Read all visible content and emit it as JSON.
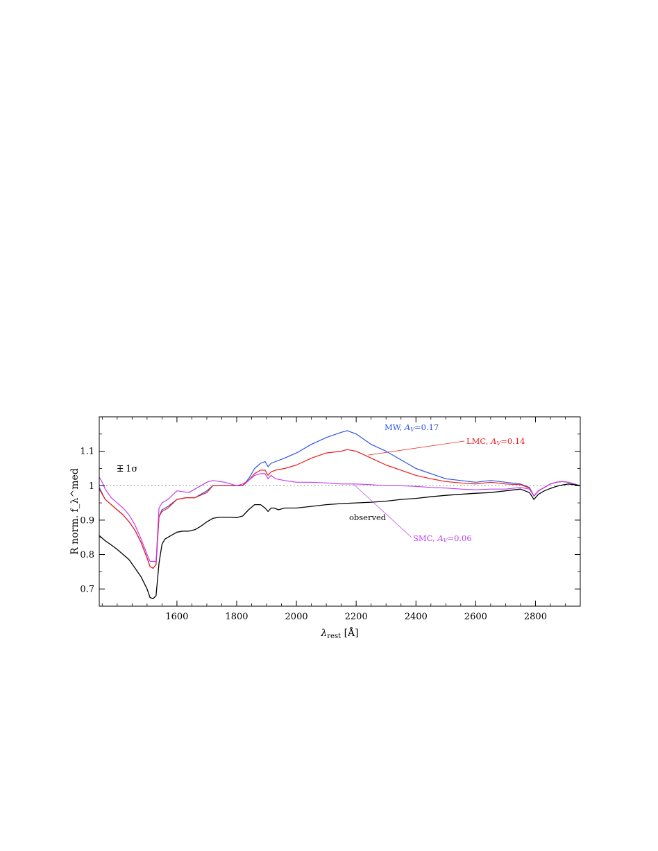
{
  "chart_data": {
    "type": "line",
    "xlabel": "λ_rest [Å]",
    "ylabel": "R norm. f_λ^med",
    "xlim": [
      1340,
      2950
    ],
    "ylim": [
      0.65,
      1.2
    ],
    "x_ticks": [
      1600,
      1800,
      2000,
      2200,
      2400,
      2600,
      2800
    ],
    "y_ticks": [
      0.7,
      0.8,
      0.9,
      1.0,
      1.1
    ],
    "x_tick_labels": [
      "1600",
      "1800",
      "2000",
      "2200",
      "2400",
      "2600",
      "2800"
    ],
    "y_tick_labels": [
      "0.7",
      "0.8",
      "0.9",
      "1",
      "1.1"
    ],
    "reference_line": 1.0,
    "grid": false,
    "error_bar": {
      "label": "1σ",
      "x": 1410,
      "y": 1.05,
      "half_height": 0.008
    },
    "series": [
      {
        "name": "observed",
        "label": "observed",
        "color": "#000000",
        "x": [
          1340,
          1360,
          1380,
          1400,
          1420,
          1440,
          1460,
          1480,
          1500,
          1510,
          1520,
          1530,
          1540,
          1550,
          1560,
          1580,
          1600,
          1620,
          1640,
          1660,
          1680,
          1700,
          1720,
          1740,
          1760,
          1780,
          1800,
          1820,
          1840,
          1860,
          1880,
          1895,
          1905,
          1915,
          1925,
          1940,
          1960,
          1980,
          2000,
          2050,
          2100,
          2150,
          2200,
          2250,
          2300,
          2350,
          2400,
          2450,
          2500,
          2550,
          2600,
          2650,
          2700,
          2750,
          2780,
          2795,
          2810,
          2830,
          2850,
          2870,
          2890,
          2910,
          2930,
          2950
        ],
        "y": [
          0.855,
          0.84,
          0.828,
          0.815,
          0.8,
          0.785,
          0.76,
          0.735,
          0.7,
          0.675,
          0.672,
          0.68,
          0.775,
          0.83,
          0.845,
          0.855,
          0.865,
          0.868,
          0.868,
          0.872,
          0.882,
          0.895,
          0.905,
          0.908,
          0.908,
          0.908,
          0.907,
          0.912,
          0.93,
          0.945,
          0.945,
          0.935,
          0.925,
          0.935,
          0.935,
          0.93,
          0.935,
          0.935,
          0.935,
          0.94,
          0.945,
          0.948,
          0.95,
          0.952,
          0.955,
          0.96,
          0.963,
          0.968,
          0.972,
          0.975,
          0.978,
          0.98,
          0.985,
          0.99,
          0.98,
          0.96,
          0.975,
          0.985,
          0.992,
          0.998,
          1.002,
          1.005,
          1.003,
          1.0
        ]
      },
      {
        "name": "MW",
        "label": "MW, A_V=0.17",
        "color": "#2a52e8",
        "x": [
          1340,
          1360,
          1380,
          1400,
          1420,
          1440,
          1460,
          1480,
          1500,
          1510,
          1520,
          1530,
          1540,
          1550,
          1570,
          1600,
          1630,
          1660,
          1700,
          1720,
          1760,
          1800,
          1820,
          1840,
          1860,
          1880,
          1895,
          1905,
          1915,
          1930,
          1960,
          2000,
          2050,
          2100,
          2150,
          2170,
          2200,
          2250,
          2300,
          2350,
          2400,
          2450,
          2500,
          2550,
          2600,
          2650,
          2700,
          2750,
          2780,
          2795,
          2810,
          2830,
          2850,
          2870,
          2890,
          2910,
          2930,
          2950
        ],
        "y": [
          0.995,
          0.96,
          0.945,
          0.93,
          0.915,
          0.895,
          0.87,
          0.835,
          0.79,
          0.765,
          0.76,
          0.77,
          0.91,
          0.93,
          0.94,
          0.96,
          0.965,
          0.965,
          0.985,
          1.0,
          1.0,
          1.0,
          1.0,
          1.02,
          1.05,
          1.065,
          1.07,
          1.055,
          1.065,
          1.07,
          1.08,
          1.095,
          1.12,
          1.14,
          1.155,
          1.16,
          1.15,
          1.12,
          1.1,
          1.075,
          1.05,
          1.035,
          1.02,
          1.015,
          1.01,
          1.015,
          1.01,
          1.005,
          0.995,
          0.97,
          0.985,
          0.995,
          1.005,
          1.01,
          1.012,
          1.01,
          1.005,
          1.0
        ]
      },
      {
        "name": "LMC",
        "label": "LMC, A_V=0.14",
        "color": "#f01818",
        "x": [
          1340,
          1360,
          1380,
          1400,
          1420,
          1440,
          1460,
          1480,
          1500,
          1510,
          1520,
          1530,
          1540,
          1550,
          1570,
          1600,
          1630,
          1660,
          1700,
          1720,
          1760,
          1800,
          1820,
          1840,
          1860,
          1880,
          1895,
          1905,
          1915,
          1930,
          1960,
          2000,
          2050,
          2100,
          2150,
          2170,
          2200,
          2250,
          2300,
          2350,
          2400,
          2450,
          2500,
          2550,
          2600,
          2650,
          2700,
          2750,
          2780,
          2795,
          2810,
          2830,
          2850,
          2870,
          2890,
          2910,
          2930,
          2950
        ],
        "y": [
          0.99,
          0.96,
          0.945,
          0.93,
          0.915,
          0.895,
          0.87,
          0.835,
          0.79,
          0.765,
          0.76,
          0.77,
          0.91,
          0.925,
          0.935,
          0.96,
          0.965,
          0.965,
          0.98,
          1.0,
          1.0,
          1.0,
          1.0,
          1.015,
          1.035,
          1.045,
          1.045,
          1.03,
          1.04,
          1.045,
          1.05,
          1.06,
          1.08,
          1.095,
          1.1,
          1.105,
          1.1,
          1.08,
          1.06,
          1.045,
          1.03,
          1.02,
          1.012,
          1.008,
          1.005,
          1.01,
          1.005,
          1.003,
          0.993,
          0.97,
          0.985,
          0.995,
          1.005,
          1.01,
          1.012,
          1.01,
          1.005,
          1.0
        ]
      },
      {
        "name": "SMC",
        "label": "SMC, A_V=0.06",
        "color": "#c03cf0",
        "x": [
          1340,
          1350,
          1360,
          1380,
          1400,
          1420,
          1440,
          1460,
          1480,
          1500,
          1510,
          1520,
          1530,
          1540,
          1550,
          1570,
          1600,
          1640,
          1680,
          1700,
          1720,
          1760,
          1800,
          1820,
          1840,
          1860,
          1880,
          1895,
          1905,
          1915,
          1930,
          1960,
          2000,
          2050,
          2100,
          2150,
          2200,
          2250,
          2300,
          2350,
          2400,
          2450,
          2500,
          2550,
          2600,
          2650,
          2700,
          2750,
          2780,
          2795,
          2810,
          2830,
          2850,
          2870,
          2890,
          2910,
          2930,
          2950
        ],
        "y": [
          1.025,
          1.01,
          0.99,
          0.965,
          0.95,
          0.935,
          0.915,
          0.885,
          0.845,
          0.8,
          0.78,
          0.78,
          0.78,
          0.935,
          0.95,
          0.96,
          0.985,
          0.98,
          1.0,
          1.01,
          1.015,
          1.01,
          1.0,
          1.005,
          1.015,
          1.03,
          1.035,
          1.035,
          1.02,
          1.03,
          1.02,
          1.015,
          1.01,
          1.01,
          1.008,
          1.005,
          1.005,
          1.003,
          1.0,
          1.0,
          0.998,
          0.995,
          0.993,
          0.99,
          0.988,
          0.99,
          0.99,
          0.995,
          0.99,
          0.97,
          0.985,
          0.995,
          1.005,
          1.01,
          1.012,
          1.01,
          1.005,
          1.0
        ]
      }
    ]
  }
}
